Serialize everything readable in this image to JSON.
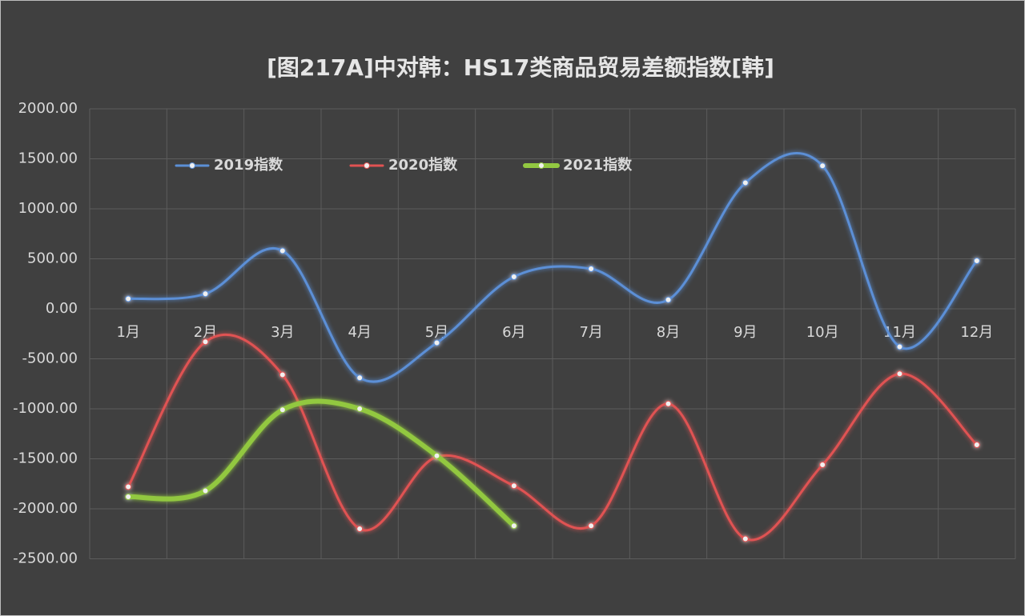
{
  "chart_data": {
    "type": "line",
    "title": "[图217A]中对韩：HS17类商品贸易差额指数[韩]",
    "categories": [
      "1月",
      "2月",
      "3月",
      "4月",
      "5月",
      "6月",
      "7月",
      "8月",
      "9月",
      "10月",
      "11月",
      "12月"
    ],
    "series": [
      {
        "name": "2019指数",
        "color": "#5b8fd6",
        "values": [
          100,
          150,
          580,
          -690,
          -340,
          320,
          400,
          90,
          1260,
          1430,
          -380,
          480
        ]
      },
      {
        "name": "2020指数",
        "color": "#e05252",
        "values": [
          -1780,
          -330,
          -660,
          -2200,
          -1480,
          -1770,
          -2170,
          -950,
          -2300,
          -1560,
          -650,
          -1360
        ]
      },
      {
        "name": "2021指数",
        "color": "#92c841",
        "values": [
          -1880,
          -1820,
          -1010,
          -1000,
          -1470,
          -2170,
          null,
          null,
          null,
          null,
          null,
          null
        ]
      }
    ],
    "ylim": [
      -2500,
      2000
    ],
    "yticks": [
      {
        "value": 2000,
        "label": "2000.00"
      },
      {
        "value": 1500,
        "label": "1500.00"
      },
      {
        "value": 1000,
        "label": "1000.00"
      },
      {
        "value": 500,
        "label": "500.00"
      },
      {
        "value": 0,
        "label": "0.00"
      },
      {
        "value": -500,
        "label": "-500.00"
      },
      {
        "value": -1000,
        "label": "-1000.00"
      },
      {
        "value": -1500,
        "label": "-1500.00"
      },
      {
        "value": -2000,
        "label": "-2000.00"
      },
      {
        "value": -2500,
        "label": "-2500.00"
      }
    ],
    "grid": true,
    "legend": "top"
  }
}
